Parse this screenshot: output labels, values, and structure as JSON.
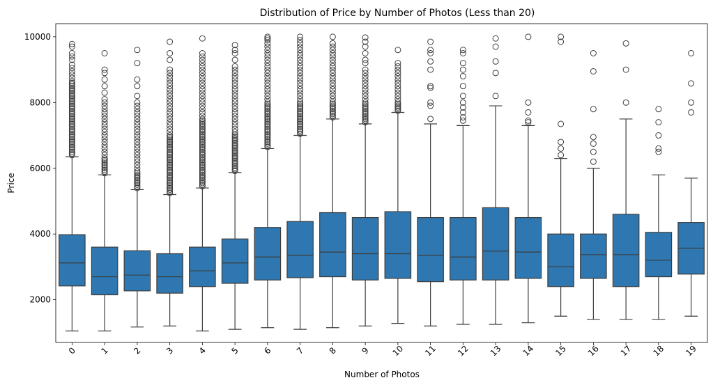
{
  "chart_data": {
    "type": "box",
    "title": "Distribution of Price by Number of Photos (Less than 20)",
    "xlabel": "Number of Photos",
    "ylabel": "Price",
    "categories": [
      "0",
      "1",
      "2",
      "3",
      "4",
      "5",
      "6",
      "7",
      "8",
      "9",
      "10",
      "11",
      "12",
      "13",
      "14",
      "15",
      "16",
      "17",
      "18",
      "19"
    ],
    "ylim": [
      700,
      10400
    ],
    "yticks": [
      2000,
      4000,
      6000,
      8000,
      10000
    ],
    "box_color": "#2e77b0",
    "line_color": "#3d3d3d",
    "grid": false,
    "boxes": [
      {
        "whisker_low": 1050,
        "q1": 2420,
        "median": 3120,
        "q3": 3980,
        "whisker_high": 6350,
        "outliers": [
          6400,
          6450,
          6500,
          6550,
          6600,
          6650,
          6700,
          6750,
          6800,
          6850,
          6900,
          6950,
          7000,
          7050,
          7100,
          7150,
          7200,
          7250,
          7300,
          7350,
          7400,
          7450,
          7500,
          7550,
          7600,
          7650,
          7700,
          7750,
          7800,
          7850,
          7900,
          7950,
          8000,
          8050,
          8100,
          8150,
          8200,
          8250,
          8300,
          8350,
          8400,
          8450,
          8500,
          8550,
          8600,
          8650,
          8750,
          8850,
          8950,
          9050,
          9150,
          9300,
          9400,
          9500,
          9700,
          9780
        ]
      },
      {
        "whisker_low": 1050,
        "q1": 2150,
        "median": 2700,
        "q3": 3600,
        "whisker_high": 5800,
        "outliers": [
          5850,
          5900,
          5950,
          6000,
          6050,
          6100,
          6150,
          6200,
          6250,
          6300,
          6400,
          6500,
          6600,
          6700,
          6800,
          6900,
          7000,
          7100,
          7200,
          7300,
          7400,
          7500,
          7600,
          7700,
          7800,
          7900,
          8000,
          8100,
          8300,
          8500,
          8700,
          8900,
          9000,
          9500
        ]
      },
      {
        "whisker_low": 1170,
        "q1": 2270,
        "median": 2750,
        "q3": 3490,
        "whisker_high": 5350,
        "outliers": [
          5400,
          5450,
          5500,
          5550,
          5600,
          5650,
          5700,
          5750,
          5800,
          5850,
          5900,
          6000,
          6100,
          6200,
          6300,
          6400,
          6500,
          6600,
          6700,
          6800,
          6900,
          7000,
          7100,
          7200,
          7300,
          7400,
          7500,
          7600,
          7700,
          7800,
          7900,
          8000,
          8200,
          8500,
          8700,
          9200,
          9600
        ]
      },
      {
        "whisker_low": 1200,
        "q1": 2200,
        "median": 2700,
        "q3": 3400,
        "whisker_high": 5200,
        "outliers": [
          5250,
          5300,
          5350,
          5400,
          5450,
          5500,
          5550,
          5600,
          5650,
          5700,
          5750,
          5800,
          5850,
          5900,
          5950,
          6000,
          6050,
          6100,
          6150,
          6200,
          6250,
          6300,
          6350,
          6400,
          6450,
          6500,
          6550,
          6600,
          6650,
          6700,
          6750,
          6800,
          6850,
          6900,
          6950,
          7000,
          7100,
          7200,
          7300,
          7400,
          7500,
          7600,
          7700,
          7800,
          7900,
          8000,
          8100,
          8200,
          8300,
          8400,
          8500,
          8600,
          8700,
          8800,
          8900,
          9000,
          9300,
          9500,
          9850
        ]
      },
      {
        "whisker_low": 1050,
        "q1": 2400,
        "median": 2880,
        "q3": 3600,
        "whisker_high": 5400,
        "outliers": [
          5450,
          5500,
          5550,
          5600,
          5650,
          5700,
          5750,
          5800,
          5850,
          5900,
          5950,
          6000,
          6050,
          6100,
          6150,
          6200,
          6250,
          6300,
          6350,
          6400,
          6450,
          6500,
          6550,
          6600,
          6650,
          6700,
          6750,
          6800,
          6850,
          6900,
          6950,
          7000,
          7050,
          7100,
          7150,
          7200,
          7250,
          7300,
          7350,
          7400,
          7450,
          7500,
          7600,
          7700,
          7800,
          7900,
          8000,
          8100,
          8200,
          8300,
          8400,
          8500,
          8600,
          8700,
          8800,
          8900,
          9000,
          9100,
          9200,
          9300,
          9400,
          9500,
          9950
        ]
      },
      {
        "whisker_low": 1100,
        "q1": 2500,
        "median": 3120,
        "q3": 3850,
        "whisker_high": 5870,
        "outliers": [
          5920,
          5970,
          6020,
          6070,
          6120,
          6170,
          6220,
          6270,
          6320,
          6370,
          6420,
          6470,
          6520,
          6570,
          6620,
          6670,
          6720,
          6770,
          6820,
          6870,
          6920,
          6970,
          7020,
          7100,
          7200,
          7300,
          7400,
          7500,
          7600,
          7700,
          7800,
          7900,
          8000,
          8100,
          8200,
          8300,
          8400,
          8500,
          8600,
          8700,
          8800,
          8900,
          9000,
          9100,
          9300,
          9500,
          9600,
          9750
        ]
      },
      {
        "whisker_low": 1150,
        "q1": 2600,
        "median": 3300,
        "q3": 4200,
        "whisker_high": 6600,
        "outliers": [
          6650,
          6700,
          6750,
          6800,
          6850,
          6900,
          6950,
          7000,
          7050,
          7100,
          7150,
          7200,
          7250,
          7300,
          7350,
          7400,
          7450,
          7500,
          7550,
          7600,
          7650,
          7700,
          7750,
          7800,
          7850,
          7900,
          7950,
          8000,
          8100,
          8200,
          8300,
          8400,
          8500,
          8600,
          8700,
          8800,
          8900,
          9000,
          9100,
          9200,
          9300,
          9400,
          9500,
          9600,
          9700,
          9800,
          9900,
          9950,
          10000
        ]
      },
      {
        "whisker_low": 1100,
        "q1": 2670,
        "median": 3350,
        "q3": 4380,
        "whisker_high": 7000,
        "outliers": [
          7050,
          7100,
          7150,
          7200,
          7250,
          7300,
          7350,
          7400,
          7450,
          7500,
          7550,
          7600,
          7650,
          7700,
          7750,
          7800,
          7850,
          7900,
          7950,
          8000,
          8100,
          8200,
          8300,
          8400,
          8500,
          8600,
          8700,
          8800,
          8900,
          9000,
          9100,
          9200,
          9300,
          9400,
          9500,
          9600,
          9700,
          9800,
          9900,
          10000
        ]
      },
      {
        "whisker_low": 1150,
        "q1": 2700,
        "median": 3450,
        "q3": 4650,
        "whisker_high": 7500,
        "outliers": [
          7550,
          7600,
          7650,
          7700,
          7750,
          7800,
          7850,
          7900,
          7950,
          8000,
          8100,
          8200,
          8300,
          8400,
          8500,
          8600,
          8700,
          8800,
          8900,
          9000,
          9100,
          9200,
          9300,
          9400,
          9500,
          9600,
          9700,
          9800,
          10000
        ]
      },
      {
        "whisker_low": 1200,
        "q1": 2600,
        "median": 3400,
        "q3": 4500,
        "whisker_high": 7350,
        "outliers": [
          7400,
          7450,
          7500,
          7550,
          7600,
          7650,
          7700,
          7750,
          7800,
          7850,
          7900,
          7950,
          8000,
          8100,
          8200,
          8300,
          8400,
          8500,
          8600,
          8700,
          8800,
          8900,
          9000,
          9200,
          9300,
          9500,
          9700,
          9850,
          9980
        ]
      },
      {
        "whisker_low": 1280,
        "q1": 2650,
        "median": 3400,
        "q3": 4680,
        "whisker_high": 7700,
        "outliers": [
          7750,
          7800,
          7850,
          7900,
          7950,
          8000,
          8100,
          8200,
          8300,
          8400,
          8500,
          8600,
          8700,
          8800,
          8900,
          9000,
          9100,
          9200,
          9600
        ]
      },
      {
        "whisker_low": 1200,
        "q1": 2550,
        "median": 3350,
        "q3": 4500,
        "whisker_high": 7350,
        "outliers": [
          7500,
          7900,
          8000,
          8450,
          8500,
          9000,
          9250,
          9500,
          9600,
          9850
        ]
      },
      {
        "whisker_low": 1250,
        "q1": 2600,
        "median": 3300,
        "q3": 4500,
        "whisker_high": 7300,
        "outliers": [
          7450,
          7550,
          7700,
          7850,
          8000,
          8200,
          8500,
          8800,
          9000,
          9200,
          9500,
          9600
        ]
      },
      {
        "whisker_low": 1250,
        "q1": 2600,
        "median": 3480,
        "q3": 4800,
        "whisker_high": 7900,
        "outliers": [
          8200,
          8900,
          9250,
          9700,
          9950
        ]
      },
      {
        "whisker_low": 1300,
        "q1": 2650,
        "median": 3450,
        "q3": 4500,
        "whisker_high": 7300,
        "outliers": [
          7400,
          7450,
          7700,
          8000,
          10000
        ]
      },
      {
        "whisker_low": 1500,
        "q1": 2400,
        "median": 3000,
        "q3": 4000,
        "whisker_high": 6300,
        "outliers": [
          6400,
          6600,
          6800,
          7350,
          9850,
          10000
        ]
      },
      {
        "whisker_low": 1400,
        "q1": 2650,
        "median": 3370,
        "q3": 4000,
        "whisker_high": 6000,
        "outliers": [
          6200,
          6500,
          6750,
          6950,
          7800,
          8950,
          9500
        ]
      },
      {
        "whisker_low": 1400,
        "q1": 2400,
        "median": 3370,
        "q3": 4600,
        "whisker_high": 7500,
        "outliers": [
          8000,
          9000,
          9800
        ]
      },
      {
        "whisker_low": 1400,
        "q1": 2700,
        "median": 3200,
        "q3": 4050,
        "whisker_high": 5800,
        "outliers": [
          6500,
          6600,
          7000,
          7400,
          7800
        ]
      },
      {
        "whisker_low": 1500,
        "q1": 2780,
        "median": 3570,
        "q3": 4350,
        "whisker_high": 5700,
        "outliers": [
          7700,
          8000,
          8580,
          9500
        ]
      }
    ]
  }
}
